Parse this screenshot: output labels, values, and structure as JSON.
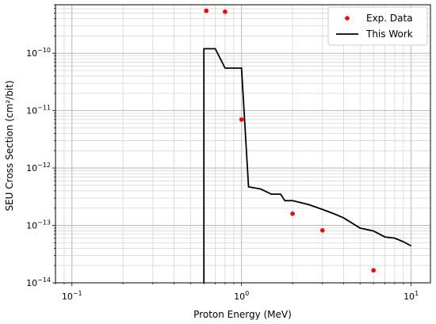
{
  "chart_data": {
    "type": "line",
    "xlabel": "Proton Energy (MeV)",
    "ylabel": "SEU Cross Section (cm²/bit)",
    "xscale": "log",
    "yscale": "log",
    "xlim": [
      0.08,
      13
    ],
    "ylim": [
      1e-14,
      7e-10
    ],
    "x_major_ticks": [
      {
        "value": 0.1,
        "base": "10",
        "exp": "−1"
      },
      {
        "value": 1,
        "base": "10",
        "exp": "0"
      },
      {
        "value": 10,
        "base": "10",
        "exp": "1"
      }
    ],
    "y_major_ticks": [
      {
        "value": 1e-14,
        "base": "10",
        "exp": "−14"
      },
      {
        "value": 1e-13,
        "base": "10",
        "exp": "−13"
      },
      {
        "value": 1e-12,
        "base": "10",
        "exp": "−12"
      },
      {
        "value": 1e-11,
        "base": "10",
        "exp": "−11"
      },
      {
        "value": 1e-10,
        "base": "10",
        "exp": "−10"
      }
    ],
    "grid": "major and minor",
    "legend_position": "top-right",
    "series": [
      {
        "name": "Exp. Data",
        "style": "markers",
        "color": "#ff0000",
        "x": [
          0.62,
          0.8,
          1.0,
          2.0,
          3.0,
          6.0
        ],
        "y": [
          5.5e-10,
          5.3e-10,
          7e-12,
          1.6e-13,
          8.2e-14,
          1.65e-14
        ]
      },
      {
        "name": "This Work",
        "style": "line",
        "color": "#000000",
        "x": [
          0.6,
          0.6,
          0.7,
          0.8,
          0.9,
          0.95,
          1.0,
          1.1,
          1.3,
          1.5,
          1.7,
          1.8,
          2.0,
          2.5,
          3.0,
          3.5,
          4.0,
          5.0,
          6.0,
          7.0,
          8.0,
          9.0,
          10.0
        ],
        "y": [
          1e-14,
          1.2e-10,
          1.2e-10,
          5.5e-11,
          5.5e-11,
          5.5e-11,
          5.5e-11,
          4.7e-13,
          4.3e-13,
          3.5e-13,
          3.5e-13,
          2.7e-13,
          2.7e-13,
          2.3e-13,
          1.9e-13,
          1.6e-13,
          1.35e-13,
          9e-14,
          8e-14,
          6.3e-14,
          6e-14,
          5.2e-14,
          4.4e-14
        ]
      }
    ]
  }
}
